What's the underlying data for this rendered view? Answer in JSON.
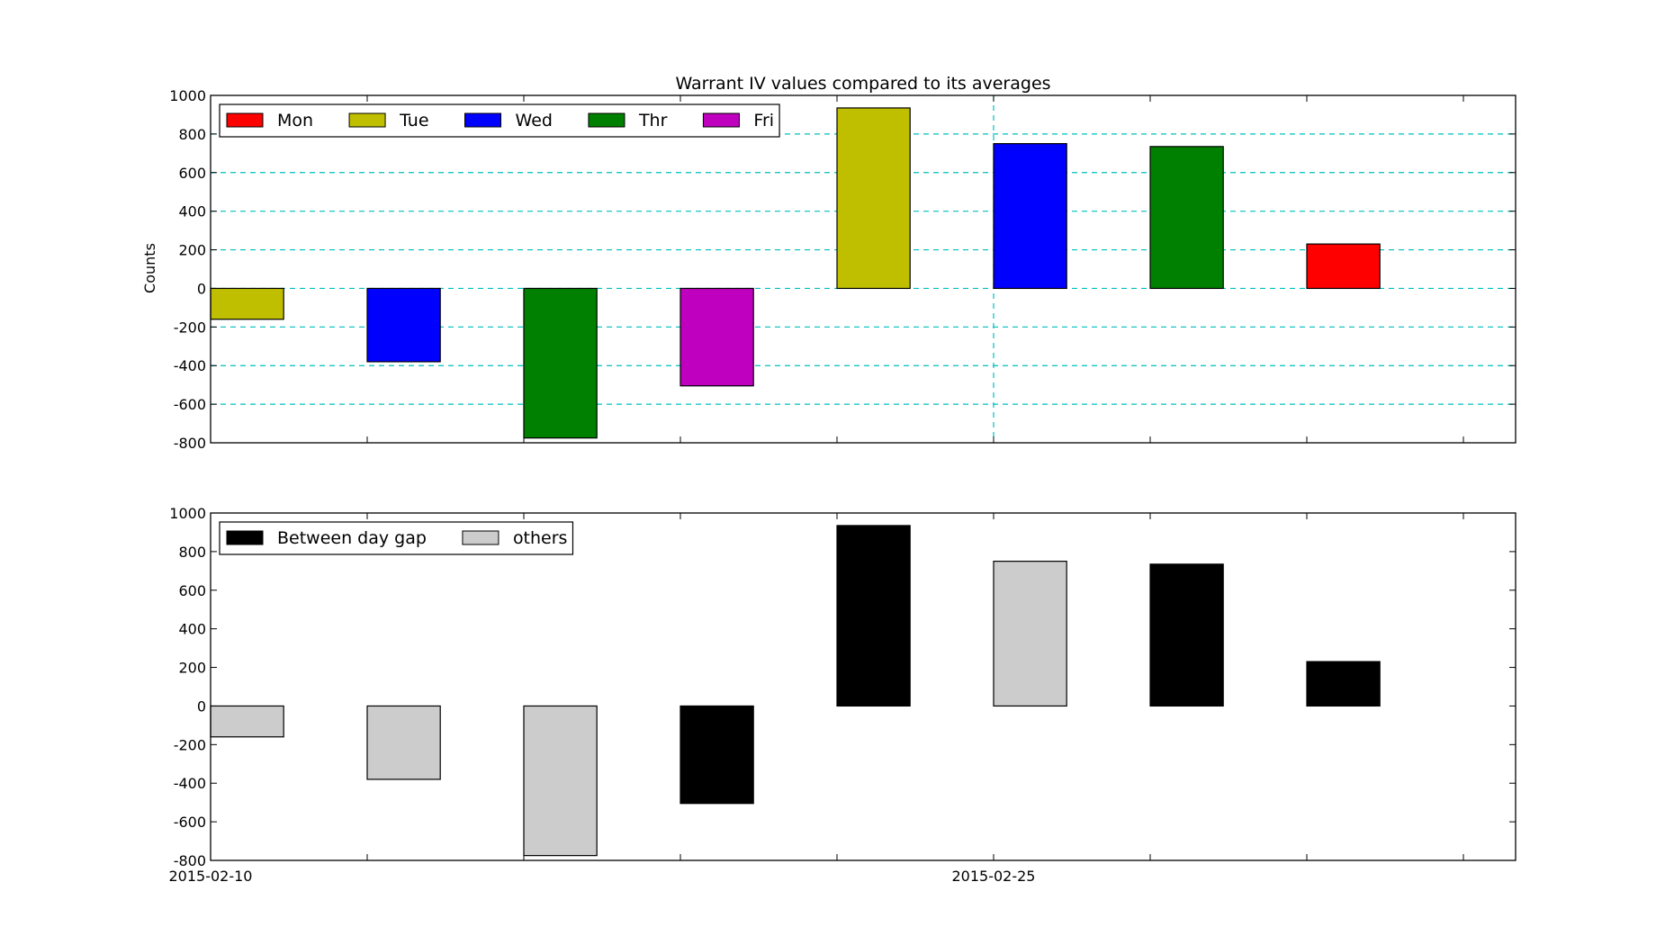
{
  "chart_data": [
    {
      "type": "bar",
      "title": "Warrant IV values compared to its averages",
      "ylabel": "Counts",
      "xlabel": "",
      "ylim": [
        -800,
        1000
      ],
      "yticks": [
        -800,
        -600,
        -400,
        -200,
        0,
        200,
        400,
        600,
        800,
        1000
      ],
      "grid": "dashed cyan horizontal lines plus one vertical line at 2015-02-25",
      "legend": {
        "placement": "top-left",
        "entries": [
          {
            "label": "Mon",
            "color": "#ff0000"
          },
          {
            "label": "Tue",
            "color": "#bfbf00"
          },
          {
            "label": "Wed",
            "color": "#0000ff"
          },
          {
            "label": "Thr",
            "color": "#008000"
          },
          {
            "label": "Fri",
            "color": "#bf00bf"
          }
        ]
      },
      "x": [
        "2015-02-10",
        "2015-02-13",
        "2015-02-16",
        "2015-02-19",
        "2015-02-22",
        "2015-02-25",
        "2015-02-28",
        "2015-03-03"
      ],
      "values": [
        -160,
        -380,
        -775,
        -505,
        935,
        750,
        735,
        230
      ],
      "bar_colors": [
        "#bfbf00",
        "#0000ff",
        "#008000",
        "#bf00bf",
        "#bfbf00",
        "#0000ff",
        "#008000",
        "#ff0000"
      ]
    },
    {
      "type": "bar",
      "title": "",
      "ylabel": "",
      "xlabel": "",
      "ylim": [
        -800,
        1000
      ],
      "yticks": [
        -800,
        -600,
        -400,
        -200,
        0,
        200,
        400,
        600,
        800,
        1000
      ],
      "legend": {
        "placement": "top-left",
        "entries": [
          {
            "label": "Between day gap",
            "color": "#000000"
          },
          {
            "label": "others",
            "color": "#cccccc"
          }
        ]
      },
      "x": [
        "2015-02-10",
        "2015-02-13",
        "2015-02-16",
        "2015-02-19",
        "2015-02-22",
        "2015-02-25",
        "2015-02-28",
        "2015-03-03"
      ],
      "values": [
        -160,
        -380,
        -775,
        -505,
        935,
        750,
        735,
        230
      ],
      "bar_colors": [
        "#cccccc",
        "#cccccc",
        "#cccccc",
        "#000000",
        "#000000",
        "#cccccc",
        "#000000",
        "#000000"
      ],
      "xtick_labels": [
        {
          "x": "2015-02-10",
          "label": "2015-02-10"
        },
        {
          "x": "2015-02-25",
          "label": "2015-02-25"
        }
      ]
    }
  ],
  "x_axis": {
    "start": "2015-02-10",
    "end": "2015-03-07",
    "bar_width_days": 1.4
  }
}
